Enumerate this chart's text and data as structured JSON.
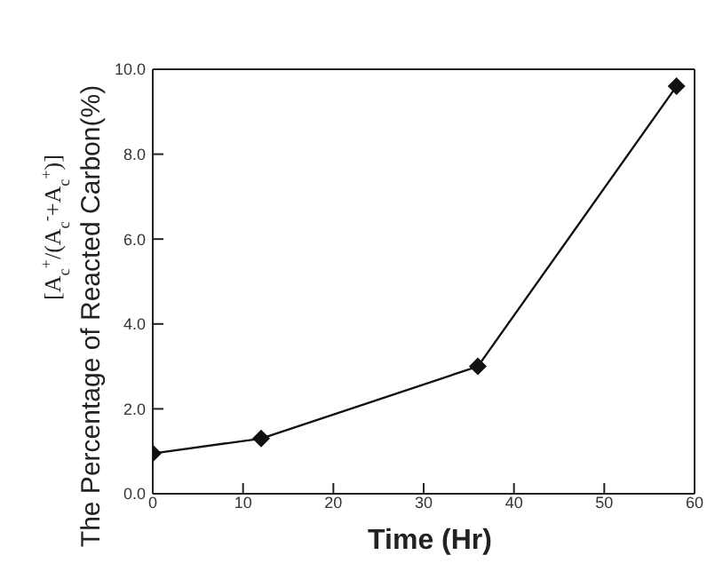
{
  "chart_data": {
    "type": "line",
    "xlabel": "Time (Hr)",
    "ylabel": "The Percentage of Reacted Carbon(%)",
    "y2label": null,
    "annotations": [
      "[A$_{c}$$^{+}$/(A$_{c}$$^{-}$+A$_{c}$$^{+}$)]"
    ],
    "x": [
      0,
      12,
      36,
      58
    ],
    "series": [
      {
        "color": "#111111",
        "values": [
          0.95,
          1.3,
          3.0,
          9.6
        ]
      }
    ],
    "xlim": [
      0,
      60
    ],
    "xticks": [
      0,
      10,
      20,
      30,
      40,
      50,
      60
    ],
    "ylim": [
      0,
      10
    ],
    "yticks": [
      {
        "value": 0,
        "label": "0.0"
      },
      {
        "value": 2,
        "label": "2.0"
      },
      {
        "value": 4,
        "label": "4.0"
      },
      {
        "value": 6,
        "label": "6.0"
      },
      {
        "value": 8,
        "label": "8.0"
      },
      {
        "value": 10,
        "label": "10.0"
      }
    ],
    "marker": "diamond",
    "line_style": "solid",
    "grid": false,
    "legend": false
  }
}
